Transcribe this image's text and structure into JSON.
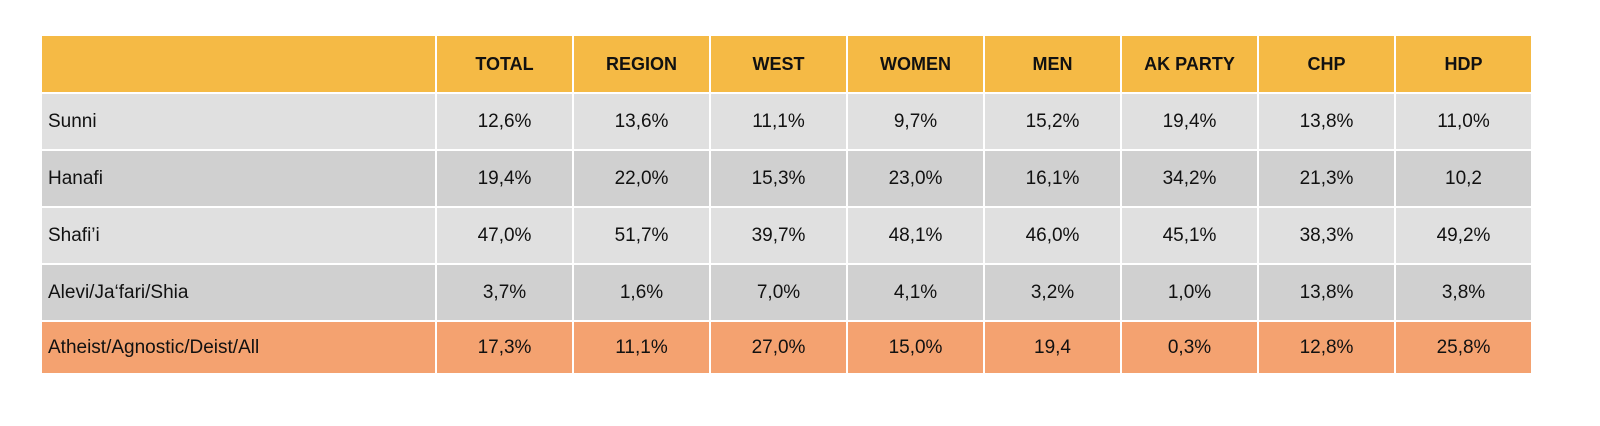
{
  "table": {
    "columns": [
      "TOTAL",
      "REGION",
      "WEST",
      "WOMEN",
      "MEN",
      "AK PARTY",
      "CHP",
      "HDP"
    ],
    "rows": [
      [
        "Sunni",
        "12,6%",
        "13,6%",
        "11,1%",
        "9,7%",
        "15,2%",
        "19,4%",
        "13,8%",
        "11,0%"
      ],
      [
        "Hanafi",
        "19,4%",
        "22,0%",
        "15,3%",
        "23,0%",
        "16,1%",
        "34,2%",
        "21,3%",
        "10,2"
      ],
      [
        "Shafi’i",
        "47,0%",
        "51,7%",
        "39,7%",
        "48,1%",
        "46,0%",
        "45,1%",
        "38,3%",
        "49,2%"
      ],
      [
        "Alevi/Ja‘fari/Shia",
        "3,7%",
        "1,6%",
        "7,0%",
        "4,1%",
        "3,2%",
        "1,0%",
        "13,8%",
        "3,8%"
      ],
      [
        "Atheist/Agnostic/Deist/All",
        "17,3%",
        "11,1%",
        "27,0%",
        "15,0%",
        "19,4",
        "0,3%",
        "12,8%",
        "25,8%"
      ]
    ]
  }
}
